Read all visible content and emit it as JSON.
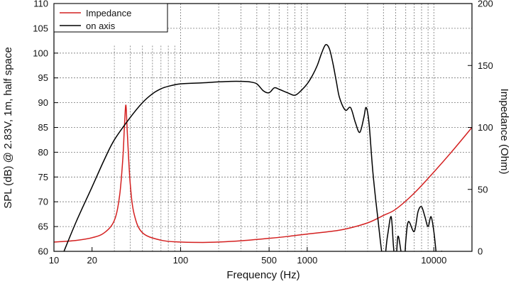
{
  "chart_data": {
    "type": "line",
    "xlabel": "Frequency (Hz)",
    "ylabel": "SPL (dB) @ 2.83V, 1m, half space",
    "y2label": "Impedance (Ohm)",
    "x_scale": "log",
    "xlim": [
      10,
      20000
    ],
    "ylim": [
      60,
      110
    ],
    "y2lim": [
      0,
      200
    ],
    "x_tick_labels": [
      "10",
      "20",
      "100",
      "500",
      "1000",
      "10000"
    ],
    "x_tick_values": [
      10,
      20,
      100,
      500,
      1000,
      10000
    ],
    "y_tick_labels": [
      "60",
      "65",
      "70",
      "75",
      "80",
      "85",
      "90",
      "95",
      "100",
      "105",
      "110"
    ],
    "y_tick_values": [
      60,
      65,
      70,
      75,
      80,
      85,
      90,
      95,
      100,
      105,
      110
    ],
    "y2_tick_labels": [
      "0",
      "50",
      "100",
      "150",
      "200"
    ],
    "y2_tick_values": [
      0,
      50,
      100,
      150,
      200
    ],
    "grid": "minor vertical decades 30-90 Hz dotted, major vertical lines 100/200/300/.../10000",
    "legend_position": "top-left",
    "series": [
      {
        "name": "Impedance",
        "axis": "right",
        "color": "#d42020",
        "x": [
          10,
          14,
          20,
          25,
          30,
          33,
          35,
          36,
          37,
          38,
          40,
          43,
          50,
          70,
          100,
          150,
          200,
          300,
          500,
          700,
          1000,
          1500,
          2000,
          3000,
          4000,
          5000,
          7000,
          10000,
          14000,
          20000
        ],
        "y": [
          7.5,
          8.5,
          11,
          15,
          25,
          45,
          75,
          100,
          118,
          95,
          55,
          30,
          15,
          9,
          7.5,
          7.2,
          7.5,
          8.5,
          10.5,
          12,
          14,
          16,
          18,
          23,
          29,
          34,
          47,
          64,
          81,
          100
        ]
      },
      {
        "name": "on axis",
        "axis": "left",
        "color": "#000000",
        "x": [
          12,
          15,
          20,
          25,
          30,
          40,
          50,
          60,
          70,
          80,
          100,
          150,
          200,
          250,
          300,
          350,
          400,
          450,
          500,
          550,
          600,
          700,
          800,
          900,
          1000,
          1100,
          1200,
          1300,
          1400,
          1500,
          1600,
          1700,
          1800,
          2000,
          2200,
          2400,
          2600,
          2800,
          2900,
          3000,
          3100,
          3300,
          3600,
          4000,
          4300,
          4600,
          4800,
          5000,
          5200,
          5500,
          5800,
          6000,
          6300,
          7000,
          7500,
          8000,
          8500,
          9000,
          9500,
          10000,
          10500,
          11000,
          11500,
          12000
        ],
        "y": [
          60,
          66,
          73,
          78.5,
          82.5,
          87,
          90,
          91.8,
          92.8,
          93.3,
          93.8,
          94,
          94.2,
          94.3,
          94.3,
          94.2,
          93.8,
          92.4,
          92,
          93,
          92.7,
          92,
          91.5,
          92.5,
          93.8,
          95.5,
          97.5,
          100,
          101.7,
          100.8,
          97.8,
          94.2,
          91,
          88.5,
          89,
          86,
          84,
          87,
          89,
          88,
          85,
          76,
          67,
          58,
          63,
          67,
          61,
          57,
          63,
          60,
          56,
          62,
          66,
          64,
          68,
          69,
          67,
          65,
          67,
          64,
          59,
          55,
          60,
          57
        ]
      }
    ]
  }
}
